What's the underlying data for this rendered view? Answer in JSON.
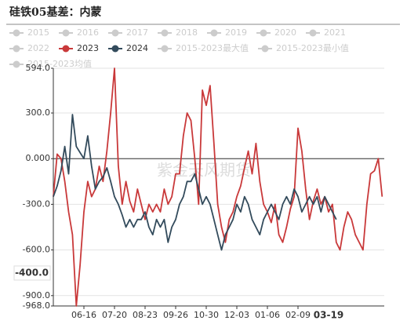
{
  "chart_data": {
    "type": "line",
    "title": "硅铁05基差：内蒙",
    "watermark": "紫金天风期货",
    "categories": [
      null,
      null,
      null,
      null,
      null,
      null,
      null,
      null,
      "06-16",
      null,
      null,
      null,
      null,
      null,
      null,
      null,
      "07-20",
      null,
      null,
      null,
      null,
      null,
      null,
      null,
      "08-23",
      null,
      null,
      null,
      null,
      null,
      null,
      null,
      "09-26",
      null,
      null,
      null,
      null,
      null,
      null,
      null,
      "10-30",
      null,
      null,
      null,
      null,
      null,
      null,
      null,
      "12-03",
      null,
      null,
      null,
      null,
      null,
      null,
      null,
      "01-06",
      null,
      null,
      null,
      null,
      null,
      null,
      null,
      "02-09",
      null,
      null,
      null,
      null,
      null,
      null,
      null,
      "03-19",
      null,
      null,
      null,
      null,
      null,
      null,
      null,
      null,
      null,
      null,
      null,
      null,
      null,
      null
    ],
    "series": [
      {
        "name": "2015",
        "color": "#cccccc",
        "visible": false
      },
      {
        "name": "2016",
        "color": "#cccccc",
        "visible": false
      },
      {
        "name": "2017",
        "color": "#cccccc",
        "visible": false
      },
      {
        "name": "2018",
        "color": "#cccccc",
        "visible": false
      },
      {
        "name": "2019",
        "color": "#cccccc",
        "visible": false
      },
      {
        "name": "2020",
        "color": "#cccccc",
        "visible": false
      },
      {
        "name": "2021",
        "color": "#cccccc",
        "visible": false
      },
      {
        "name": "2022",
        "color": "#cccccc",
        "visible": false
      },
      {
        "name": "2023",
        "color": "#c9393a",
        "visible": true,
        "values": [
          -250,
          30,
          0,
          -150,
          -350,
          -500,
          -968,
          -700,
          -350,
          -150,
          -250,
          -200,
          -50,
          -150,
          50,
          300,
          594,
          -50,
          -300,
          -150,
          -280,
          -350,
          -200,
          -300,
          -400,
          -300,
          -350,
          -300,
          -350,
          -200,
          -300,
          -250,
          -100,
          -100,
          150,
          300,
          250,
          0,
          -300,
          450,
          350,
          480,
          100,
          -300,
          -450,
          -550,
          -400,
          -350,
          -250,
          -180,
          -60,
          50,
          -100,
          100,
          -150,
          -300,
          -350,
          -420,
          -300,
          -500,
          -550,
          -450,
          -330,
          -250,
          200,
          50,
          -200,
          -400,
          -280,
          -200,
          -300,
          -250,
          -350,
          -300,
          -550,
          -600,
          -450,
          -350,
          -400,
          -500,
          -550,
          -600,
          -300,
          -100,
          -80,
          0,
          -250
        ]
      },
      {
        "name": "2024",
        "color": "#334b5c",
        "visible": true,
        "values": [
          -250,
          -180,
          -80,
          80,
          -100,
          290,
          80,
          40,
          0,
          150,
          -50,
          -200,
          -150,
          -120,
          -60,
          -150,
          -250,
          -300,
          -370,
          -450,
          -400,
          -450,
          -400,
          -400,
          -350,
          -450,
          -500,
          -400,
          -450,
          -400,
          -550,
          -450,
          -400,
          -300,
          -250,
          -150,
          -150,
          -100,
          -200,
          -300,
          -250,
          -300,
          -400,
          -500,
          -600,
          -500,
          -450,
          -400,
          -300,
          -350,
          -250,
          -300,
          -400,
          -450,
          -500,
          -400,
          -350,
          -300,
          -350,
          -400,
          -300,
          -250,
          -300,
          -200,
          -250,
          -350,
          -300,
          -250,
          -300,
          -250,
          -350,
          -250,
          -300,
          -350,
          -400,
          null,
          null,
          null,
          null,
          null,
          null,
          null,
          null,
          null,
          null,
          null,
          null
        ]
      },
      {
        "name": "2015-2023最大值",
        "color": "#cccccc",
        "visible": false
      },
      {
        "name": "2015-2023最小值",
        "color": "#cccccc",
        "visible": false
      },
      {
        "name": "2015-2023均值",
        "color": "#cccccc",
        "visible": false
      }
    ],
    "ylim": [
      -968,
      594
    ],
    "yticks": [
      {
        "value": 594,
        "label": "594.0"
      },
      {
        "value": 300,
        "label": "300.0"
      },
      {
        "value": 0,
        "label": "0.000"
      },
      {
        "value": -300,
        "label": "-300.0"
      },
      {
        "value": -600,
        "label": "-600.0"
      },
      {
        "value": -900,
        "label": "-900.0"
      },
      {
        "value": -968,
        "label": "-968.0"
      }
    ],
    "grid": true,
    "axis_pointer": {
      "category": "03-19",
      "y": {
        "value": -400,
        "label": "-400.0"
      }
    }
  }
}
